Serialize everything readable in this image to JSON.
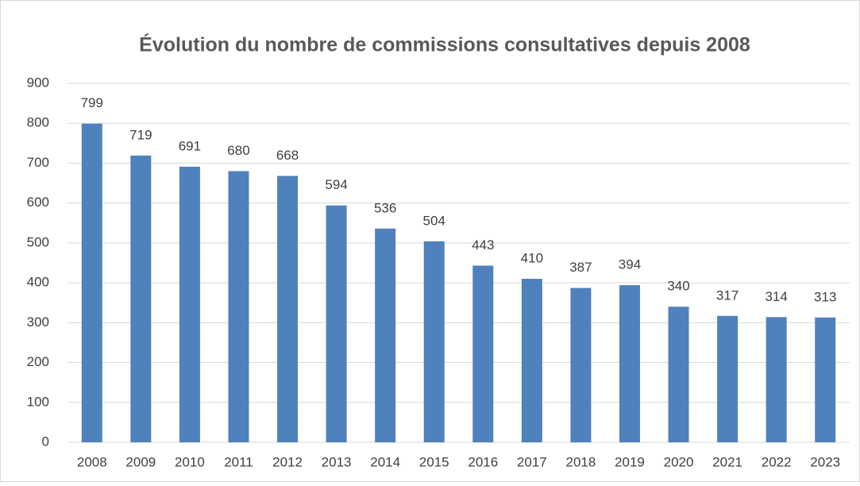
{
  "chart_data": {
    "type": "bar",
    "title": "Évolution du nombre de commissions consultatives depuis 2008",
    "categories": [
      "2008",
      "2009",
      "2010",
      "2011",
      "2012",
      "2013",
      "2014",
      "2015",
      "2016",
      "2017",
      "2018",
      "2019",
      "2020",
      "2021",
      "2022",
      "2023"
    ],
    "values": [
      799,
      719,
      691,
      680,
      668,
      594,
      536,
      504,
      443,
      410,
      387,
      394,
      340,
      317,
      314,
      313
    ],
    "color": "#4f81bd",
    "ylim": [
      0,
      900
    ],
    "yticks": [
      0,
      100,
      200,
      300,
      400,
      500,
      600,
      700,
      800,
      900
    ],
    "grid": true,
    "data_labels": true
  }
}
